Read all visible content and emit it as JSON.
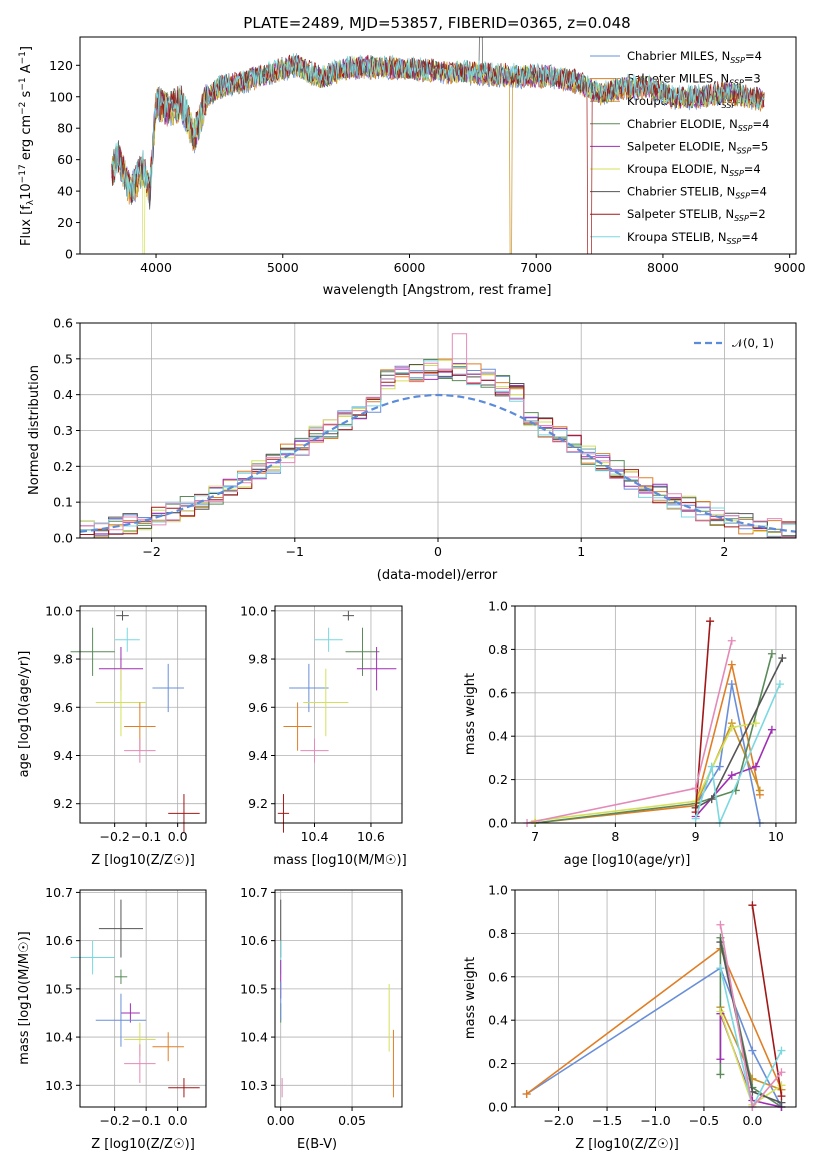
{
  "title": "PLATE=2489, MJD=53857, FIBERID=0365, z=0.048",
  "colors": [
    "#6a8fd8",
    "#e07e26",
    "#c9932a",
    "#5a8a5a",
    "#a02eb5",
    "#d4e05a",
    "#555555",
    "#a01818",
    "#7ad8e0",
    "#e38ab8"
  ],
  "chart_data": [
    {
      "id": "spectrum",
      "type": "line",
      "title": "PLATE=2489, MJD=53857, FIBERID=0365, z=0.048",
      "xlabel": "wavelength [Angstrom, rest frame]",
      "ylabel": "Flux [f_λ 10^-17 erg cm^-2 s^-1 A^-1]",
      "xlim": [
        3400,
        9050
      ],
      "ylim": [
        0,
        138
      ],
      "xticks": [
        "4000",
        "5000",
        "6000",
        "7000",
        "8000",
        "9000"
      ],
      "yticks": [
        "0",
        "20",
        "40",
        "60",
        "80",
        "100",
        "120"
      ],
      "legend_position": "upper-right",
      "series": [
        {
          "name": "Chabrier MILES, N_SSP=4"
        },
        {
          "name": "Salpeter MILES, N_SSP=3"
        },
        {
          "name": "Kroupa MILES, N_SSP=4"
        },
        {
          "name": "Chabrier ELODIE, N_SSP=4"
        },
        {
          "name": "Salpeter ELODIE, N_SSP=5"
        },
        {
          "name": "Kroupa ELODIE, N_SSP=4"
        },
        {
          "name": "Chabrier STELIB, N_SSP=4"
        },
        {
          "name": "Salpeter STELIB, N_SSP=2"
        },
        {
          "name": "Kroupa STELIB, N_SSP=4"
        }
      ],
      "envelope_x": [
        3650,
        3700,
        3800,
        3900,
        3950,
        4000,
        4100,
        4200,
        4300,
        4400,
        4500,
        4700,
        4900,
        5100,
        5300,
        5500,
        5700,
        5900,
        6100,
        6300,
        6500,
        6700,
        6900,
        7100,
        7300,
        7500,
        7700,
        7900,
        8100,
        8300,
        8500,
        8700,
        8800
      ],
      "envelope_y": [
        52,
        62,
        40,
        55,
        38,
        96,
        92,
        96,
        75,
        100,
        106,
        110,
        115,
        120,
        112,
        118,
        119,
        118,
        117,
        116,
        115,
        114,
        113,
        113,
        110,
        102,
        106,
        106,
        99,
        100,
        103,
        99,
        98
      ],
      "grid": false
    },
    {
      "id": "residuals",
      "type": "histogram",
      "xlabel": "(data-model)/error",
      "ylabel": "Normed distribution",
      "xlim": [
        -2.5,
        2.5
      ],
      "ylim": [
        0,
        0.6
      ],
      "xticks": [
        "−2",
        "−1",
        "0",
        "1",
        "2"
      ],
      "yticks": [
        "0.0",
        "0.1",
        "0.2",
        "0.3",
        "0.4",
        "0.5",
        "0.6"
      ],
      "legend": "𝒩(0, 1)",
      "legend_position": "upper-right",
      "bin_width": 0.1,
      "grid": true
    },
    {
      "id": "age_vs_Z",
      "type": "errorbar",
      "xlabel": "Z [log10(Z/Z☉)]",
      "ylabel": "age [log10(age/yr)]",
      "xlim": [
        -0.31,
        0.09
      ],
      "ylim": [
        9.12,
        10.02
      ],
      "xticks": [
        "−0.2",
        "−0.1",
        "0.0"
      ],
      "yticks": [
        "9.2",
        "9.4",
        "9.6",
        "9.8",
        "10.0"
      ],
      "points": [
        {
          "x": -0.175,
          "y": 9.98,
          "xerr": 0.02,
          "yerr": 0.02
        },
        {
          "x": -0.16,
          "y": 9.88,
          "xerr": 0.04,
          "yerr": 0.05
        },
        {
          "x": -0.27,
          "y": 9.83,
          "xerr": 0.07,
          "yerr": 0.1
        },
        {
          "x": -0.18,
          "y": 9.76,
          "xerr": 0.07,
          "yerr": 0.09
        },
        {
          "x": -0.03,
          "y": 9.68,
          "xerr": 0.05,
          "yerr": 0.1
        },
        {
          "x": -0.18,
          "y": 9.62,
          "xerr": 0.08,
          "yerr": 0.14
        },
        {
          "x": -0.12,
          "y": 9.52,
          "xerr": 0.05,
          "yerr": 0.1
        },
        {
          "x": -0.12,
          "y": 9.42,
          "xerr": 0.05,
          "yerr": 0.05
        },
        {
          "x": 0.02,
          "y": 9.16,
          "xerr": 0.05,
          "yerr": 0.08
        }
      ],
      "grid": true
    },
    {
      "id": "age_vs_mass",
      "type": "errorbar",
      "xlabel": "mass [log10(M/M☉)]",
      "ylabel": "",
      "xlim": [
        10.26,
        10.71
      ],
      "ylim": [
        9.12,
        10.02
      ],
      "xticks": [
        "10.4",
        "10.6"
      ],
      "yticks": [
        "9.2",
        "9.4",
        "9.6",
        "9.8",
        "10.0"
      ],
      "points": [
        {
          "x": 10.52,
          "y": 9.98,
          "xerr": 0.02,
          "yerr": 0.02
        },
        {
          "x": 10.45,
          "y": 9.88,
          "xerr": 0.05,
          "yerr": 0.05
        },
        {
          "x": 10.57,
          "y": 9.83,
          "xerr": 0.06,
          "yerr": 0.1
        },
        {
          "x": 10.62,
          "y": 9.76,
          "xerr": 0.07,
          "yerr": 0.09
        },
        {
          "x": 10.38,
          "y": 9.68,
          "xerr": 0.07,
          "yerr": 0.1
        },
        {
          "x": 10.44,
          "y": 9.62,
          "xerr": 0.08,
          "yerr": 0.14
        },
        {
          "x": 10.34,
          "y": 9.52,
          "xerr": 0.05,
          "yerr": 0.1
        },
        {
          "x": 10.4,
          "y": 9.42,
          "xerr": 0.05,
          "yerr": 0.05
        },
        {
          "x": 10.29,
          "y": 9.16,
          "xerr": 0.02,
          "yerr": 0.08
        }
      ],
      "grid": true
    },
    {
      "id": "weight_vs_age",
      "type": "line",
      "xlabel": "age [log10(age/yr)]",
      "ylabel": "mass weight",
      "xlim": [
        6.75,
        10.25
      ],
      "ylim": [
        0,
        1
      ],
      "xticks": [
        "7",
        "8",
        "9",
        "10"
      ],
      "yticks": [
        "0.0",
        "0.2",
        "0.4",
        "0.6",
        "0.8",
        "1.0"
      ],
      "series": [
        {
          "x": [
            9.0,
            9.3,
            9.45,
            9.8
          ],
          "y": [
            0.08,
            0.26,
            0.64,
            0.0
          ]
        },
        {
          "x": [
            7.0,
            9.0,
            9.45,
            9.8
          ],
          "y": [
            0.0,
            0.08,
            0.73,
            0.13
          ]
        },
        {
          "x": [
            9.0,
            9.45,
            9.8
          ],
          "y": [
            0.08,
            0.46,
            0.15
          ]
        },
        {
          "x": [
            7.0,
            9.0,
            9.5,
            9.95
          ],
          "y": [
            0.0,
            0.09,
            0.15,
            0.78
          ]
        },
        {
          "x": [
            9.0,
            9.45,
            9.75,
            9.95
          ],
          "y": [
            0.03,
            0.22,
            0.26,
            0.43
          ]
        },
        {
          "x": [
            7.0,
            9.0,
            9.45,
            9.75
          ],
          "y": [
            0.01,
            0.1,
            0.44,
            0.46
          ]
        },
        {
          "x": [
            9.0,
            9.2,
            10.08
          ],
          "y": [
            0.07,
            0.11,
            0.76
          ]
        },
        {
          "x": [
            9.0,
            9.18
          ],
          "y": [
            0.05,
            0.93
          ]
        },
        {
          "x": [
            9.0,
            9.2,
            9.3,
            10.05
          ],
          "y": [
            0.02,
            0.26,
            0.0,
            0.64
          ]
        },
        {
          "x": [
            6.9,
            9.0,
            9.45
          ],
          "y": [
            0.0,
            0.16,
            0.84
          ]
        }
      ],
      "grid": true
    },
    {
      "id": "mass_vs_Z",
      "type": "errorbar",
      "xlabel": "Z [log10(Z/Z☉)]",
      "ylabel": "mass [log10(M/M☉)]",
      "xlim": [
        -0.31,
        0.09
      ],
      "ylim": [
        10.255,
        10.705
      ],
      "xticks": [
        "−0.2",
        "−0.1",
        "0.0"
      ],
      "yticks": [
        "10.3",
        "10.4",
        "10.5",
        "10.6",
        "10.7"
      ],
      "points": [
        {
          "x": -0.18,
          "y": 10.625,
          "xerr": 0.07,
          "yerr": 0.06
        },
        {
          "x": -0.27,
          "y": 10.565,
          "xerr": 0.07,
          "yerr": 0.035
        },
        {
          "x": -0.18,
          "y": 10.525,
          "xerr": 0.02,
          "yerr": 0.015
        },
        {
          "x": -0.15,
          "y": 10.45,
          "xerr": 0.03,
          "yerr": 0.02
        },
        {
          "x": -0.18,
          "y": 10.435,
          "xerr": 0.08,
          "yerr": 0.055
        },
        {
          "x": -0.12,
          "y": 10.395,
          "xerr": 0.05,
          "yerr": 0.035
        },
        {
          "x": -0.03,
          "y": 10.38,
          "xerr": 0.05,
          "yerr": 0.03
        },
        {
          "x": -0.12,
          "y": 10.345,
          "xerr": 0.05,
          "yerr": 0.04
        },
        {
          "x": 0.02,
          "y": 10.295,
          "xerr": 0.05,
          "yerr": 0.02
        }
      ],
      "grid": true
    },
    {
      "id": "mass_vs_ebv",
      "type": "errorbar",
      "xlabel": "E(B-V)",
      "ylabel": "",
      "xlim": [
        -0.004,
        0.085
      ],
      "ylim": [
        10.255,
        10.705
      ],
      "xticks": [
        "0.00",
        "0.05"
      ],
      "yticks": [
        "10.3",
        "10.4",
        "10.5",
        "10.6",
        "10.7"
      ],
      "points": [
        {
          "x": 0.0,
          "y": 10.625,
          "xerr": 0.0,
          "yerr": 0.06
        },
        {
          "x": 0.0,
          "y": 10.565,
          "xerr": 0.0,
          "yerr": 0.035
        },
        {
          "x": 0.0,
          "y": 10.45,
          "xerr": 0.0,
          "yerr": 0.02
        },
        {
          "x": 0.0,
          "y": 10.52,
          "xerr": 0.0,
          "yerr": 0.04
        },
        {
          "x": 0.0,
          "y": 10.475,
          "xerr": 0.0,
          "yerr": 0.04
        },
        {
          "x": 0.076,
          "y": 10.44,
          "xerr": 0.0,
          "yerr": 0.07
        },
        {
          "x": 0.079,
          "y": 10.345,
          "xerr": 0.0,
          "yerr": 0.07
        },
        {
          "x": 0.001,
          "y": 10.295,
          "xerr": 0.0,
          "yerr": 0.02
        }
      ],
      "grid": true
    },
    {
      "id": "weight_vs_Z",
      "type": "line",
      "xlabel": "Z [log10(Z/Z☉)]",
      "ylabel": "mass weight",
      "xlim": [
        -2.45,
        0.45
      ],
      "ylim": [
        0,
        1
      ],
      "xticks": [
        "−2.0",
        "−1.5",
        "−1.0",
        "−0.5",
        "0.0"
      ],
      "yticks": [
        "0.0",
        "0.2",
        "0.4",
        "0.6",
        "0.8",
        "1.0"
      ],
      "series": [
        {
          "x": [
            -2.33,
            -0.33,
            0.0,
            0.3
          ],
          "y": [
            0.06,
            0.64,
            0.26,
            0.0
          ]
        },
        {
          "x": [
            -2.33,
            -0.33,
            0.3
          ],
          "y": [
            0.06,
            0.73,
            0.08
          ]
        },
        {
          "x": [
            -0.33,
            0.0,
            0.3
          ],
          "y": [
            0.46,
            0.13,
            0.08
          ]
        },
        {
          "x": [
            -0.33,
            -0.33,
            0.0,
            0.3
          ],
          "y": [
            0.15,
            0.78,
            0.09,
            0.0
          ]
        },
        {
          "x": [
            -0.33,
            -0.33,
            0.0,
            0.3
          ],
          "y": [
            0.22,
            0.43,
            0.03,
            0.0
          ]
        },
        {
          "x": [
            -0.33,
            0.0,
            0.3
          ],
          "y": [
            0.44,
            0.01,
            0.1
          ]
        },
        {
          "x": [
            -0.33,
            0.0,
            0.3
          ],
          "y": [
            0.76,
            0.07,
            0.02
          ]
        },
        {
          "x": [
            0.0,
            0.3
          ],
          "y": [
            0.93,
            0.05
          ]
        },
        {
          "x": [
            -0.33,
            0.0,
            0.3
          ],
          "y": [
            0.64,
            0.0,
            0.26
          ]
        },
        {
          "x": [
            -0.33,
            0.0,
            0.3
          ],
          "y": [
            0.84,
            0.0,
            0.16
          ]
        }
      ],
      "grid": true
    }
  ]
}
